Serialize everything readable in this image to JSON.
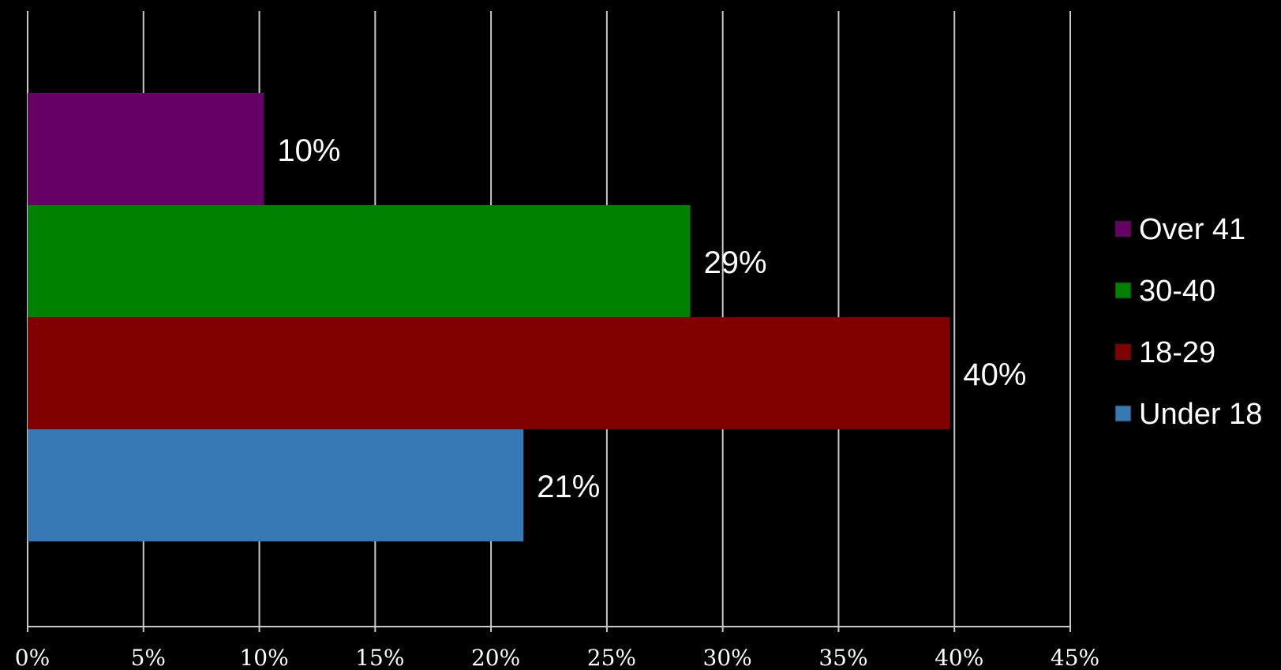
{
  "chart_data": {
    "type": "bar",
    "orientation": "horizontal",
    "categories": [
      "Over 41",
      "30-40",
      "18-29",
      "Under 18"
    ],
    "values": [
      10.2,
      28.6,
      39.8,
      21.4
    ],
    "data_labels": [
      "10%",
      "29%",
      "40%",
      "21%"
    ],
    "colors": [
      "#660066",
      "#008000",
      "#800000",
      "#3779b5"
    ],
    "xlim": [
      0,
      45
    ],
    "x_ticks": [
      0,
      5,
      10,
      15,
      20,
      25,
      30,
      35,
      40,
      45
    ],
    "x_tick_labels": [
      "0%",
      "5%",
      "10%",
      "15%",
      "20%",
      "25%",
      "30%",
      "35%",
      "40%",
      "45%"
    ],
    "grid": "vertical",
    "legend": {
      "position": "right",
      "items": [
        "Over 41",
        "30-40",
        "18-29",
        "Under 18"
      ]
    },
    "title": "",
    "xlabel": "",
    "ylabel": ""
  },
  "theme": {
    "background": "#000000",
    "gridline": "#c8c8c8",
    "text": "#ffffff"
  }
}
